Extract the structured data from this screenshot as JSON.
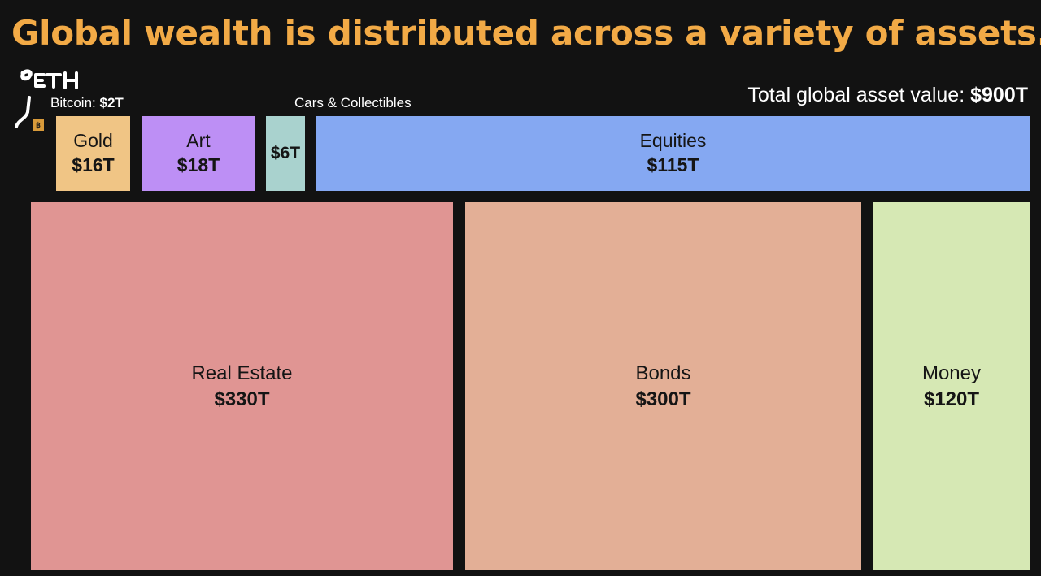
{
  "title": "Global wealth is distributed across a variety of assets.",
  "total": {
    "label": "Total global asset value:",
    "value": "$900T"
  },
  "annotations": {
    "handwritten": "ETH",
    "bitcoin": {
      "label": "Bitcoin:",
      "value": "$2T"
    },
    "cars": {
      "label": "Cars & Collectibles"
    }
  },
  "chart_data": {
    "type": "treemap",
    "title": "Global wealth is distributed across a variety of assets.",
    "unit": "$T",
    "items": [
      {
        "name": "Real Estate",
        "value": 330,
        "label": "$330T",
        "color": "#E09593"
      },
      {
        "name": "Bonds",
        "value": 300,
        "label": "$300T",
        "color": "#E3AF96"
      },
      {
        "name": "Money",
        "value": 120,
        "label": "$120T",
        "color": "#D6E8B4"
      },
      {
        "name": "Equities",
        "value": 115,
        "label": "$115T",
        "color": "#85A8F2"
      },
      {
        "name": "Art",
        "value": 18,
        "label": "$18T",
        "color": "#BD8FF5"
      },
      {
        "name": "Gold",
        "value": 16,
        "label": "$16T",
        "color": "#F0C585"
      },
      {
        "name": "Cars & Collectibles",
        "value": 6,
        "label": "$6T",
        "color": "#A9D2CE"
      },
      {
        "name": "Bitcoin",
        "value": 2,
        "label": "$2T",
        "color": "#D89A3A"
      }
    ]
  }
}
